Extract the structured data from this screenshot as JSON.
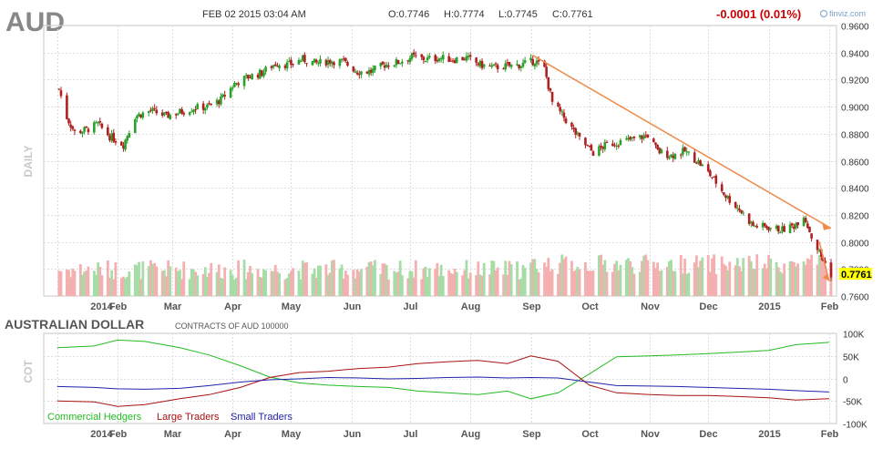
{
  "header": {
    "ticker": "AUD",
    "timestamp": "FEB 02 2015 03:04 AM",
    "open": "O:0.7746",
    "high": "H:0.7774",
    "low": "L:0.7745",
    "close": "C:0.7761",
    "change": "-0.0001 (0.01%)",
    "brand": "finviz.com",
    "period_label": "DAILY"
  },
  "cot_header": {
    "title": "AUSTRALIAN DOLLAR",
    "subtitle": "CONTRACTS OF AUD 100000",
    "side_label": "COT"
  },
  "colors": {
    "up": "#2aa12a",
    "down": "#b02020",
    "volume_up": "#a6dca6",
    "volume_down": "#f4b0b0",
    "trendline": "#f08a4a",
    "last_price_bg": "#ffff00",
    "grid": "#dcdcdc",
    "change_text": "#cc0000",
    "commercial": "#22bb22",
    "large": "#aa1111",
    "small": "#2222aa"
  },
  "chart_data": [
    {
      "type": "candlestick",
      "title": "AUD",
      "period": "daily",
      "ylim": [
        0.76,
        0.96
      ],
      "y_ticks": [
        "0.9600",
        "0.9400",
        "0.9200",
        "0.9000",
        "0.8800",
        "0.8600",
        "0.8400",
        "0.8200",
        "0.8000",
        "0.7800",
        "0.7600"
      ],
      "x_ticks": [
        "2014",
        "Feb",
        "Mar",
        "Apr",
        "May",
        "Jun",
        "Jul",
        "Aug",
        "Sep",
        "Oct",
        "Nov",
        "Dec",
        "2015",
        "Feb"
      ],
      "last_price": "0.7761",
      "close_path": [
        [
          "2014-01-02",
          0.913
        ],
        [
          "2014-01-06",
          0.892
        ],
        [
          "2014-01-10",
          0.881
        ],
        [
          "2014-01-16",
          0.883
        ],
        [
          "2014-01-22",
          0.887
        ],
        [
          "2014-01-28",
          0.878
        ],
        [
          "2014-02-04",
          0.872
        ],
        [
          "2014-02-10",
          0.893
        ],
        [
          "2014-02-18",
          0.897
        ],
        [
          "2014-02-26",
          0.893
        ],
        [
          "2014-03-05",
          0.896
        ],
        [
          "2014-03-12",
          0.899
        ],
        [
          "2014-03-19",
          0.9
        ],
        [
          "2014-03-26",
          0.905
        ],
        [
          "2014-04-02",
          0.917
        ],
        [
          "2014-04-09",
          0.922
        ],
        [
          "2014-04-16",
          0.925
        ],
        [
          "2014-04-23",
          0.932
        ],
        [
          "2014-04-30",
          0.931
        ],
        [
          "2014-05-07",
          0.935
        ],
        [
          "2014-05-14",
          0.932
        ],
        [
          "2014-05-21",
          0.934
        ],
        [
          "2014-05-28",
          0.933
        ],
        [
          "2014-06-04",
          0.926
        ],
        [
          "2014-06-11",
          0.926
        ],
        [
          "2014-06-18",
          0.931
        ],
        [
          "2014-06-25",
          0.933
        ],
        [
          "2014-07-02",
          0.937
        ],
        [
          "2014-07-09",
          0.935
        ],
        [
          "2014-07-16",
          0.936
        ],
        [
          "2014-07-23",
          0.935
        ],
        [
          "2014-07-30",
          0.936
        ],
        [
          "2014-08-06",
          0.931
        ],
        [
          "2014-08-13",
          0.929
        ],
        [
          "2014-08-20",
          0.93
        ],
        [
          "2014-08-27",
          0.931
        ],
        [
          "2014-09-03",
          0.934
        ],
        [
          "2014-09-08",
          0.928
        ],
        [
          "2014-09-12",
          0.903
        ],
        [
          "2014-09-18",
          0.892
        ],
        [
          "2014-09-26",
          0.876
        ],
        [
          "2014-10-03",
          0.866
        ],
        [
          "2014-10-10",
          0.872
        ],
        [
          "2014-10-17",
          0.874
        ],
        [
          "2014-10-24",
          0.876
        ],
        [
          "2014-10-31",
          0.879
        ],
        [
          "2014-11-05",
          0.867
        ],
        [
          "2014-11-12",
          0.864
        ],
        [
          "2014-11-19",
          0.867
        ],
        [
          "2014-11-26",
          0.859
        ],
        [
          "2014-12-03",
          0.848
        ],
        [
          "2014-12-10",
          0.834
        ],
        [
          "2014-12-17",
          0.824
        ],
        [
          "2014-12-24",
          0.812
        ],
        [
          "2014-12-31",
          0.811
        ],
        [
          "2015-01-08",
          0.809
        ],
        [
          "2015-01-14",
          0.812
        ],
        [
          "2015-01-19",
          0.82
        ],
        [
          "2015-01-23",
          0.804
        ],
        [
          "2015-01-28",
          0.789
        ],
        [
          "2015-02-02",
          0.7761
        ]
      ]
    },
    {
      "type": "line",
      "title": "AUSTRALIAN DOLLAR",
      "subtitle": "CONTRACTS OF AUD 100000",
      "ylim": [
        -100000,
        100000
      ],
      "y_ticks": [
        "100K",
        "50K",
        "0",
        "-50K",
        "-100K"
      ],
      "x_ticks": [
        "2014",
        "Feb",
        "Mar",
        "Apr",
        "May",
        "Jun",
        "Jul",
        "Aug",
        "Sep",
        "Oct",
        "Nov",
        "Dec",
        "2015",
        "Feb"
      ],
      "legend": [
        "Commercial Hedgers",
        "Large Traders",
        "Small Traders"
      ],
      "legend_position": "bottom-left",
      "series": [
        {
          "name": "Commercial Hedgers",
          "color": "#22bb22",
          "points": [
            [
              "2014-01-01",
              68000
            ],
            [
              "2014-01-20",
              72000
            ],
            [
              "2014-02-01",
              85000
            ],
            [
              "2014-02-15",
              82000
            ],
            [
              "2014-03-05",
              68000
            ],
            [
              "2014-03-20",
              52000
            ],
            [
              "2014-04-05",
              28000
            ],
            [
              "2014-04-20",
              3000
            ],
            [
              "2014-05-05",
              -10000
            ],
            [
              "2014-05-20",
              -15000
            ],
            [
              "2014-06-05",
              -18000
            ],
            [
              "2014-06-20",
              -20000
            ],
            [
              "2014-07-05",
              -28000
            ],
            [
              "2014-07-20",
              -32000
            ],
            [
              "2014-08-05",
              -36000
            ],
            [
              "2014-08-20",
              -28000
            ],
            [
              "2014-09-01",
              -45000
            ],
            [
              "2014-09-15",
              -32000
            ],
            [
              "2014-10-01",
              10000
            ],
            [
              "2014-10-15",
              48000
            ],
            [
              "2014-11-01",
              50000
            ],
            [
              "2014-11-15",
              52000
            ],
            [
              "2014-12-01",
              55000
            ],
            [
              "2014-12-15",
              58000
            ],
            [
              "2015-01-01",
              62000
            ],
            [
              "2015-01-15",
              75000
            ],
            [
              "2015-02-01",
              80000
            ]
          ]
        },
        {
          "name": "Large Traders",
          "color": "#aa1111",
          "points": [
            [
              "2014-01-01",
              -50000
            ],
            [
              "2014-01-20",
              -52000
            ],
            [
              "2014-02-01",
              -62000
            ],
            [
              "2014-02-15",
              -58000
            ],
            [
              "2014-03-05",
              -45000
            ],
            [
              "2014-03-20",
              -36000
            ],
            [
              "2014-04-05",
              -20000
            ],
            [
              "2014-04-20",
              2000
            ],
            [
              "2014-05-05",
              13000
            ],
            [
              "2014-05-20",
              16000
            ],
            [
              "2014-06-05",
              22000
            ],
            [
              "2014-06-20",
              25000
            ],
            [
              "2014-07-05",
              33000
            ],
            [
              "2014-07-20",
              37000
            ],
            [
              "2014-08-05",
              40000
            ],
            [
              "2014-08-20",
              33000
            ],
            [
              "2014-09-01",
              50000
            ],
            [
              "2014-09-15",
              38000
            ],
            [
              "2014-10-01",
              -15000
            ],
            [
              "2014-10-15",
              -32000
            ],
            [
              "2014-11-01",
              -36000
            ],
            [
              "2014-11-15",
              -38000
            ],
            [
              "2014-12-01",
              -38000
            ],
            [
              "2014-12-15",
              -40000
            ],
            [
              "2015-01-01",
              -43000
            ],
            [
              "2015-01-15",
              -48000
            ],
            [
              "2015-02-01",
              -45000
            ]
          ]
        },
        {
          "name": "Small Traders",
          "color": "#2222aa",
          "points": [
            [
              "2014-01-01",
              -18000
            ],
            [
              "2014-01-20",
              -20000
            ],
            [
              "2014-02-01",
              -23000
            ],
            [
              "2014-02-15",
              -24000
            ],
            [
              "2014-03-05",
              -22000
            ],
            [
              "2014-03-20",
              -16000
            ],
            [
              "2014-04-05",
              -8000
            ],
            [
              "2014-04-20",
              -3000
            ],
            [
              "2014-05-05",
              -1000
            ],
            [
              "2014-05-20",
              2000
            ],
            [
              "2014-06-05",
              1000
            ],
            [
              "2014-06-20",
              -1000
            ],
            [
              "2014-07-05",
              0
            ],
            [
              "2014-07-20",
              2000
            ],
            [
              "2014-08-05",
              3000
            ],
            [
              "2014-08-20",
              1000
            ],
            [
              "2014-09-01",
              2000
            ],
            [
              "2014-09-15",
              1000
            ],
            [
              "2014-10-01",
              -8000
            ],
            [
              "2014-10-15",
              -16000
            ],
            [
              "2014-11-01",
              -17000
            ],
            [
              "2014-11-15",
              -18000
            ],
            [
              "2014-12-01",
              -20000
            ],
            [
              "2014-12-15",
              -22000
            ],
            [
              "2015-01-01",
              -24000
            ],
            [
              "2015-01-15",
              -27000
            ],
            [
              "2015-02-01",
              -30000
            ]
          ]
        }
      ]
    }
  ]
}
